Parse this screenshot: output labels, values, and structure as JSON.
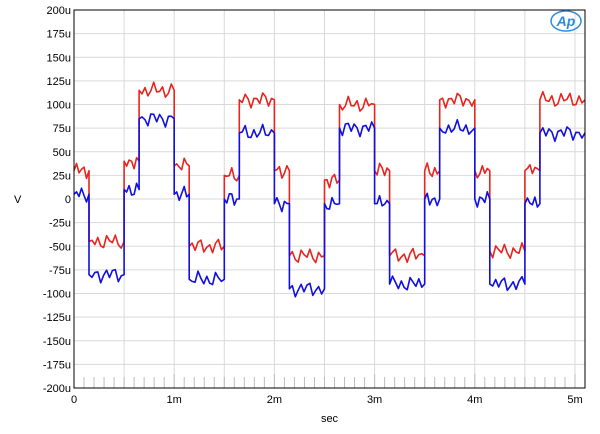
{
  "chart_data": {
    "type": "line",
    "xlabel": "sec",
    "ylabel": "V",
    "xlim": [
      0,
      0.0051
    ],
    "ylim": [
      -0.0002,
      0.0002
    ],
    "grid": true,
    "logo_text": "Ap",
    "x_ticks": [
      {
        "value": 0,
        "label": "0"
      },
      {
        "value": 0.001,
        "label": "1m"
      },
      {
        "value": 0.002,
        "label": "2m"
      },
      {
        "value": 0.003,
        "label": "3m"
      },
      {
        "value": 0.004,
        "label": "4m"
      },
      {
        "value": 0.005,
        "label": "5m"
      }
    ],
    "y_ticks": [
      {
        "value": 0.0002,
        "label": "200u"
      },
      {
        "value": 0.000175,
        "label": "175u"
      },
      {
        "value": 0.00015,
        "label": "150u"
      },
      {
        "value": 0.000125,
        "label": "125u"
      },
      {
        "value": 0.0001,
        "label": "100u"
      },
      {
        "value": 7.5e-05,
        "label": "75u"
      },
      {
        "value": 5e-05,
        "label": "50u"
      },
      {
        "value": 2.5e-05,
        "label": "25u"
      },
      {
        "value": 0,
        "label": "0"
      },
      {
        "value": -2.5e-05,
        "label": "-25u"
      },
      {
        "value": -5e-05,
        "label": "-50u"
      },
      {
        "value": -7.5e-05,
        "label": "-75u"
      },
      {
        "value": -0.0001,
        "label": "-100u"
      },
      {
        "value": -0.000125,
        "label": "-125u"
      },
      {
        "value": -0.00015,
        "label": "-150u"
      },
      {
        "value": -0.000175,
        "label": "-175u"
      },
      {
        "value": -0.0002,
        "label": "-200u"
      }
    ],
    "series": [
      {
        "color": "#e8241e",
        "segments": [
          {
            "x0": 0,
            "x1": 0.00015,
            "y": 3e-05
          },
          {
            "x0": 0.00015,
            "x1": 0.0005,
            "y": -4.5e-05
          },
          {
            "x0": 0.0005,
            "x1": 0.00065,
            "y": 4e-05
          },
          {
            "x0": 0.00065,
            "x1": 0.001,
            "y": 0.000115
          },
          {
            "x0": 0.001,
            "x1": 0.00115,
            "y": 3.5e-05
          },
          {
            "x0": 0.00115,
            "x1": 0.0015,
            "y": -5e-05
          },
          {
            "x0": 0.0015,
            "x1": 0.00165,
            "y": 2.5e-05
          },
          {
            "x0": 0.00165,
            "x1": 0.002,
            "y": 0.000105
          },
          {
            "x0": 0.002,
            "x1": 0.00215,
            "y": 3e-05
          },
          {
            "x0": 0.00215,
            "x1": 0.0025,
            "y": -6e-05
          },
          {
            "x0": 0.0025,
            "x1": 0.00265,
            "y": 2e-05
          },
          {
            "x0": 0.00265,
            "x1": 0.003,
            "y": 0.0001
          },
          {
            "x0": 0.003,
            "x1": 0.00315,
            "y": 3e-05
          },
          {
            "x0": 0.00315,
            "x1": 0.0035,
            "y": -6e-05
          },
          {
            "x0": 0.0035,
            "x1": 0.00365,
            "y": 3e-05
          },
          {
            "x0": 0.00365,
            "x1": 0.004,
            "y": 0.000105
          },
          {
            "x0": 0.004,
            "x1": 0.00415,
            "y": 3e-05
          },
          {
            "x0": 0.00415,
            "x1": 0.0045,
            "y": -5.5e-05
          },
          {
            "x0": 0.0045,
            "x1": 0.00465,
            "y": 3e-05
          },
          {
            "x0": 0.00465,
            "x1": 0.0051,
            "y": 0.000105
          }
        ]
      },
      {
        "color": "#1010e0",
        "segments": [
          {
            "x0": 0,
            "x1": 0.00015,
            "y": 5e-06
          },
          {
            "x0": 0.00015,
            "x1": 0.0005,
            "y": -8e-05
          },
          {
            "x0": 0.0005,
            "x1": 0.00065,
            "y": 1e-05
          },
          {
            "x0": 0.00065,
            "x1": 0.001,
            "y": 8.5e-05
          },
          {
            "x0": 0.001,
            "x1": 0.00115,
            "y": 5e-06
          },
          {
            "x0": 0.00115,
            "x1": 0.0015,
            "y": -8.5e-05
          },
          {
            "x0": 0.0015,
            "x1": 0.00165,
            "y": 0.0
          },
          {
            "x0": 0.00165,
            "x1": 0.002,
            "y": 7e-05
          },
          {
            "x0": 0.002,
            "x1": 0.00215,
            "y": -5e-06
          },
          {
            "x0": 0.00215,
            "x1": 0.0025,
            "y": -9.5e-05
          },
          {
            "x0": 0.0025,
            "x1": 0.00265,
            "y": -5e-06
          },
          {
            "x0": 0.00265,
            "x1": 0.003,
            "y": 7.5e-05
          },
          {
            "x0": 0.003,
            "x1": 0.00315,
            "y": -5e-06
          },
          {
            "x0": 0.00315,
            "x1": 0.0035,
            "y": -9e-05
          },
          {
            "x0": 0.0035,
            "x1": 0.00365,
            "y": 0.0
          },
          {
            "x0": 0.00365,
            "x1": 0.004,
            "y": 7.5e-05
          },
          {
            "x0": 0.004,
            "x1": 0.00415,
            "y": 0.0
          },
          {
            "x0": 0.00415,
            "x1": 0.0045,
            "y": -9e-05
          },
          {
            "x0": 0.0045,
            "x1": 0.00465,
            "y": -5e-06
          },
          {
            "x0": 0.00465,
            "x1": 0.0051,
            "y": 7e-05
          }
        ]
      }
    ]
  }
}
